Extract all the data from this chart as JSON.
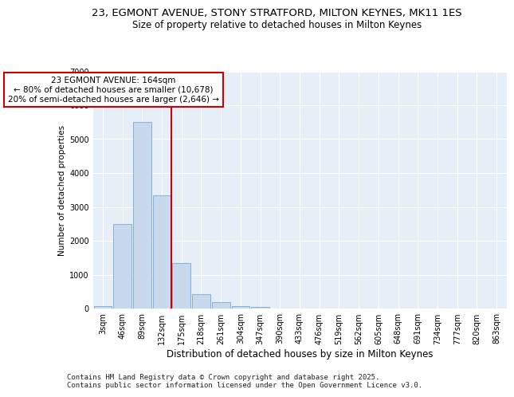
{
  "title_line1": "23, EGMONT AVENUE, STONY STRATFORD, MILTON KEYNES, MK11 1ES",
  "title_line2": "Size of property relative to detached houses in Milton Keynes",
  "xlabel": "Distribution of detached houses by size in Milton Keynes",
  "ylabel": "Number of detached properties",
  "categories": [
    "3sqm",
    "46sqm",
    "89sqm",
    "132sqm",
    "175sqm",
    "218sqm",
    "261sqm",
    "304sqm",
    "347sqm",
    "390sqm",
    "433sqm",
    "476sqm",
    "519sqm",
    "562sqm",
    "605sqm",
    "648sqm",
    "691sqm",
    "734sqm",
    "777sqm",
    "820sqm",
    "863sqm"
  ],
  "values": [
    75,
    2500,
    5500,
    3350,
    1350,
    425,
    200,
    75,
    50,
    10,
    5,
    0,
    0,
    0,
    0,
    0,
    0,
    0,
    0,
    0,
    0
  ],
  "bar_color": "#c8d9ee",
  "bar_edge_color": "#7aa8d4",
  "vline_position": 4,
  "vline_color": "#cc0000",
  "annotation_line1": "23 EGMONT AVENUE: 164sqm",
  "annotation_line2": "← 80% of detached houses are smaller (10,678)",
  "annotation_line3": "20% of semi-detached houses are larger (2,646) →",
  "annotation_box_facecolor": "#ffffff",
  "annotation_box_edgecolor": "#cc0000",
  "ylim": [
    0,
    7000
  ],
  "yticks": [
    0,
    1000,
    2000,
    3000,
    4000,
    5000,
    6000,
    7000
  ],
  "plot_bg_color": "#e6eef8",
  "grid_color": "#ffffff",
  "footer": "Contains HM Land Registry data © Crown copyright and database right 2025.\nContains public sector information licensed under the Open Government Licence v3.0.",
  "title1_fontsize": 9.5,
  "title2_fontsize": 8.5,
  "xlabel_fontsize": 8.5,
  "ylabel_fontsize": 7.5,
  "tick_fontsize": 7,
  "annotation_fontsize": 7.5,
  "footer_fontsize": 6.5
}
